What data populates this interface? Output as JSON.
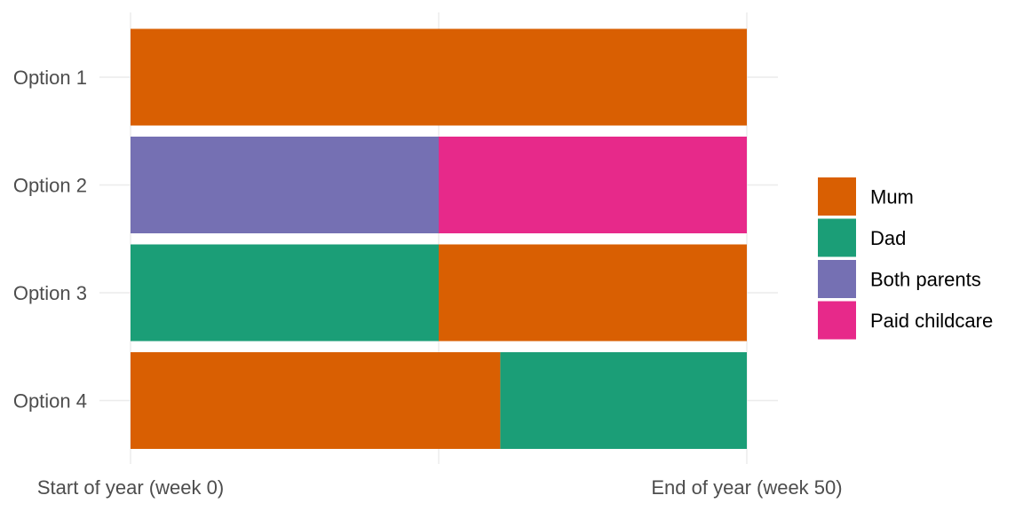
{
  "chart_data": {
    "type": "bar",
    "orientation": "horizontal",
    "stacked": true,
    "categories": [
      "Option 1",
      "Option 2",
      "Option 3",
      "Option 4"
    ],
    "x_tick_labels": [
      {
        "value": 0,
        "label": "Start of year (week 0)"
      },
      {
        "value": 50,
        "label": "End of year (week 50)"
      }
    ],
    "xlim": [
      0,
      50
    ],
    "grid": true,
    "legend_position": "right",
    "series": [
      {
        "name": "Mum",
        "color": "#d95f02"
      },
      {
        "name": "Dad",
        "color": "#1b9e77"
      },
      {
        "name": "Both parents",
        "color": "#7570b3"
      },
      {
        "name": "Paid childcare",
        "color": "#e7298a"
      }
    ],
    "bars": [
      {
        "category": "Option 1",
        "segments": [
          {
            "series": "Mum",
            "start": 0,
            "end": 50
          }
        ]
      },
      {
        "category": "Option 2",
        "segments": [
          {
            "series": "Both parents",
            "start": 0,
            "end": 25
          },
          {
            "series": "Paid childcare",
            "start": 25,
            "end": 50
          }
        ]
      },
      {
        "category": "Option 3",
        "segments": [
          {
            "series": "Dad",
            "start": 0,
            "end": 25
          },
          {
            "series": "Mum",
            "start": 25,
            "end": 50
          }
        ]
      },
      {
        "category": "Option 4",
        "segments": [
          {
            "series": "Mum",
            "start": 0,
            "end": 30
          },
          {
            "series": "Dad",
            "start": 30,
            "end": 50
          }
        ]
      }
    ]
  }
}
